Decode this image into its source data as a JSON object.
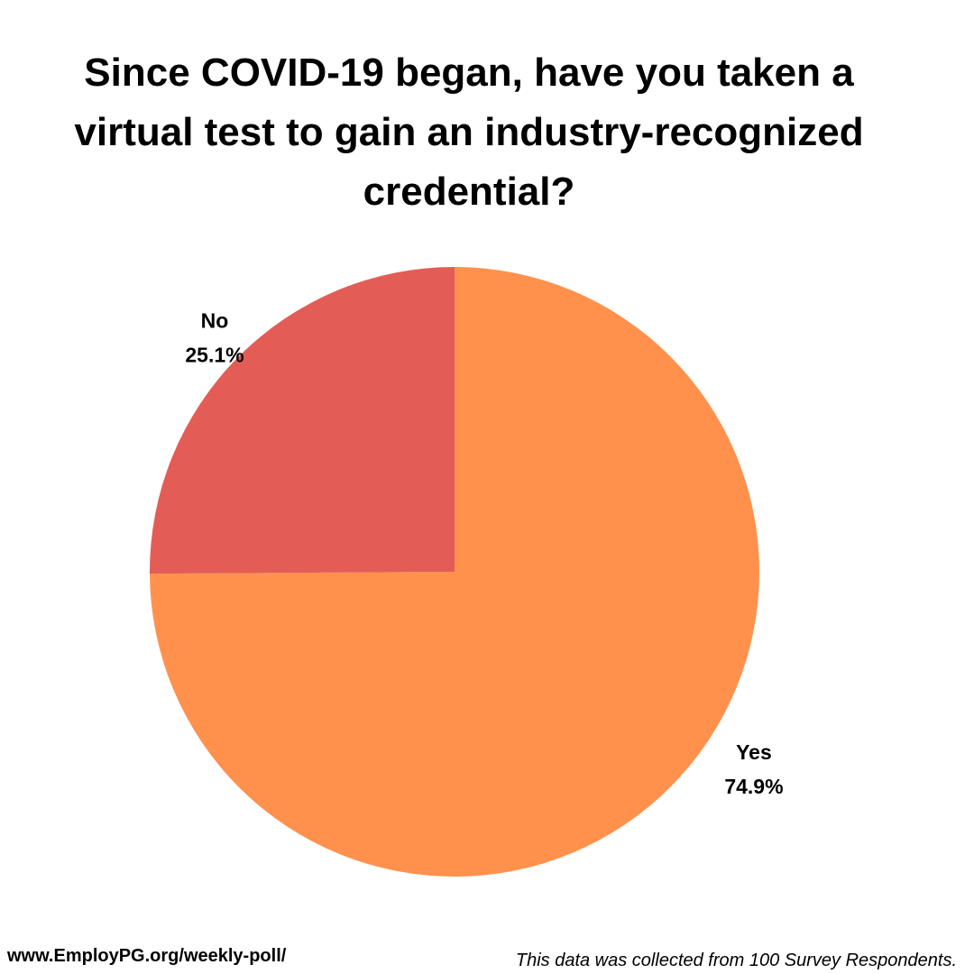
{
  "chart_data": {
    "type": "pie",
    "title": "Since COVID-19 began, have you taken a virtual test to gain an industry-recognized credential?",
    "slices": [
      {
        "label": "Yes",
        "value": 74.9,
        "display": "74.9%",
        "color": "#FF914D"
      },
      {
        "label": "No",
        "value": 25.1,
        "display": "25.1%",
        "color": "#E35D56"
      }
    ],
    "start_angle": "12 o'clock",
    "direction": "clockwise",
    "legend": "none"
  },
  "footer": {
    "url": "www.EmployPG.org/weekly-poll/",
    "note": "This data was collected from 100 Survey Respondents."
  }
}
